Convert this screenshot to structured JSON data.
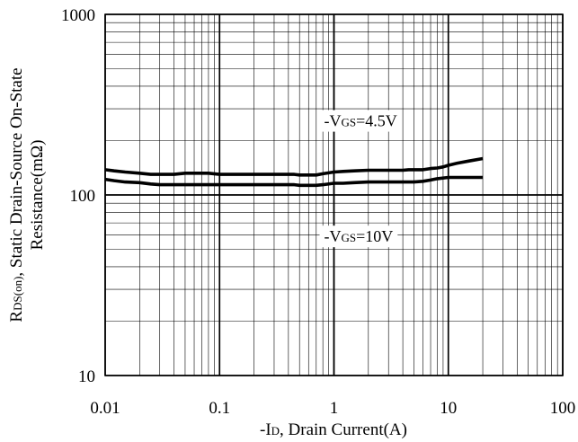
{
  "chart_data": {
    "type": "line",
    "x_scale": "log",
    "y_scale": "log",
    "xlim": [
      0.01,
      100
    ],
    "ylim": [
      10,
      1000
    ],
    "x_ticks": [
      {
        "value": 0.01,
        "label": "0.01"
      },
      {
        "value": 0.1,
        "label": "0.1"
      },
      {
        "value": 1,
        "label": "1"
      },
      {
        "value": 10,
        "label": "10"
      },
      {
        "value": 100,
        "label": "100"
      }
    ],
    "y_ticks": [
      {
        "value": 10,
        "label": "10"
      },
      {
        "value": 100,
        "label": "100"
      },
      {
        "value": 1000,
        "label": "1000"
      }
    ],
    "xlabel": {
      "prefix": "-I",
      "sub": "D",
      "rest": ", Drain Current(A)"
    },
    "ylabel": {
      "line1_prefix": "R",
      "line1_sub": "DS(on)",
      "line1_rest": ", Static Drain-Source On-State",
      "line2": "Resistance(mΩ)"
    },
    "grid": true,
    "series": [
      {
        "annotation": {
          "prefix": "-V",
          "sub": "GS",
          "rest": "=4.5V"
        },
        "x": [
          0.01,
          0.012,
          0.015,
          0.02,
          0.025,
          0.03,
          0.04,
          0.05,
          0.07,
          0.08,
          0.1,
          0.2,
          0.3,
          0.45,
          0.5,
          0.7,
          0.8,
          1.0,
          1.2,
          1.5,
          2,
          3,
          4,
          4.5,
          6,
          7,
          8,
          9,
          10,
          12,
          15,
          20
        ],
        "y": [
          138,
          136,
          134,
          132,
          130,
          130,
          130,
          132,
          132,
          132,
          130,
          130,
          130,
          130,
          129,
          129,
          131,
          134,
          135,
          136,
          137,
          137,
          137,
          138,
          138,
          140,
          141,
          143,
          146,
          150,
          154,
          159
        ]
      },
      {
        "annotation": {
          "prefix": "-V",
          "sub": "GS",
          "rest": "=10V"
        },
        "x": [
          0.01,
          0.012,
          0.015,
          0.02,
          0.025,
          0.03,
          0.05,
          0.08,
          0.1,
          0.2,
          0.3,
          0.45,
          0.5,
          0.7,
          0.8,
          1.0,
          1.2,
          1.5,
          2,
          3,
          4,
          5,
          6,
          7,
          8,
          10,
          20
        ],
        "y": [
          122,
          120,
          118,
          117,
          115,
          114,
          114,
          114,
          114,
          114,
          114,
          114,
          113,
          113,
          114,
          116,
          116,
          117,
          118,
          118,
          118,
          118,
          119,
          121,
          123,
          125,
          125
        ]
      }
    ]
  }
}
